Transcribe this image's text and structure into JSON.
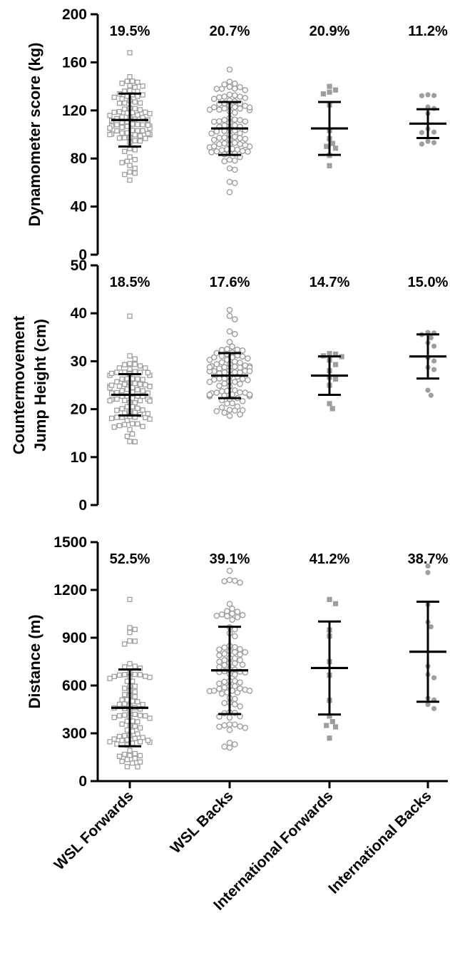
{
  "chart_data": [
    {
      "type": "scatter",
      "ylabel": "Dynamometer score (kg)",
      "ylim": [
        0,
        200
      ],
      "yticks": [
        0,
        40,
        80,
        120,
        160,
        200
      ],
      "categories": [
        "WSL Forwards",
        "WSL Backs",
        "International Forwards",
        "International Backs"
      ],
      "cv_labels": [
        "19.5%",
        "20.7%",
        "20.9%",
        "11.2%"
      ],
      "series": [
        {
          "mean": 112,
          "sd": 22,
          "marker": "open-square",
          "n": 90,
          "min": 62,
          "max": 168
        },
        {
          "mean": 105,
          "sd": 22,
          "marker": "open-circle",
          "n": 90,
          "min": 52,
          "max": 154
        },
        {
          "mean": 105,
          "sd": 22,
          "marker": "filled-square",
          "n": 12,
          "min": 74,
          "max": 140
        },
        {
          "mean": 109,
          "sd": 12,
          "marker": "filled-circle",
          "n": 12,
          "min": 92,
          "max": 133
        }
      ]
    },
    {
      "type": "scatter",
      "ylabel": "Countermovement Jump Height (cm)",
      "ylim": [
        0,
        50
      ],
      "yticks": [
        0,
        10,
        20,
        30,
        40,
        50
      ],
      "categories": [
        "WSL Forwards",
        "WSL Backs",
        "International Forwards",
        "International Backs"
      ],
      "cv_labels": [
        "18.5%",
        "17.6%",
        "14.7%",
        "15.0%"
      ],
      "series": [
        {
          "mean": 23,
          "sd": 4.3,
          "marker": "open-square",
          "n": 90,
          "min": 13.2,
          "max": 39.4
        },
        {
          "mean": 27,
          "sd": 4.7,
          "marker": "open-circle",
          "n": 90,
          "min": 18.6,
          "max": 40.7
        },
        {
          "mean": 27,
          "sd": 4.0,
          "marker": "filled-square",
          "n": 12,
          "min": 20.1,
          "max": 31.6
        },
        {
          "mean": 31,
          "sd": 4.6,
          "marker": "filled-circle",
          "n": 12,
          "min": 22.9,
          "max": 36.0
        }
      ]
    },
    {
      "type": "scatter",
      "ylabel": "Distance (m)",
      "ylim": [
        0,
        1500
      ],
      "yticks": [
        0,
        300,
        600,
        900,
        1200,
        1500
      ],
      "categories": [
        "WSL Forwards",
        "WSL Backs",
        "International Forwards",
        "International Backs"
      ],
      "cv_labels": [
        "52.5%",
        "39.1%",
        "41.2%",
        "38.7%"
      ],
      "series": [
        {
          "mean": 460,
          "sd": 241,
          "marker": "open-square",
          "n": 90,
          "min": 90,
          "max": 1140
        },
        {
          "mean": 695,
          "sd": 274,
          "marker": "open-circle",
          "n": 90,
          "min": 210,
          "max": 1320
        },
        {
          "mean": 710,
          "sd": 292,
          "marker": "filled-square",
          "n": 12,
          "min": 270,
          "max": 1140
        },
        {
          "mean": 812,
          "sd": 314,
          "marker": "filled-circle",
          "n": 12,
          "min": 455,
          "max": 1350
        }
      ]
    }
  ],
  "colors": {
    "axis": "#000000",
    "marker": "#9e9e9e",
    "errorbar": "#000000"
  }
}
